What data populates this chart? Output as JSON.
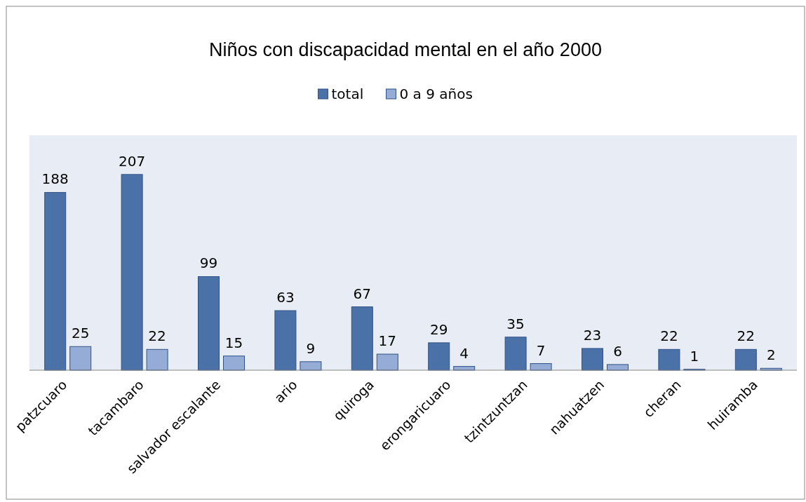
{
  "chart_data": {
    "type": "bar",
    "title": "Niños con discapacidad mental en el año 2000",
    "categories": [
      "patzcuaro",
      "tacambaro",
      "salvador escalante",
      "ario",
      "quiroga",
      "erongaricuaro",
      "tzintzuntzan",
      "nahuatzen",
      "cheran",
      "huiramba"
    ],
    "series": [
      {
        "name": "total",
        "color": "#4a72a8",
        "values": [
          188,
          207,
          99,
          63,
          67,
          29,
          35,
          23,
          22,
          22
        ]
      },
      {
        "name": "0 a 9 años",
        "color": "#94acd6",
        "values": [
          25,
          22,
          15,
          9,
          17,
          4,
          7,
          6,
          1,
          2
        ]
      }
    ],
    "data_labels": true,
    "legend": "top"
  }
}
